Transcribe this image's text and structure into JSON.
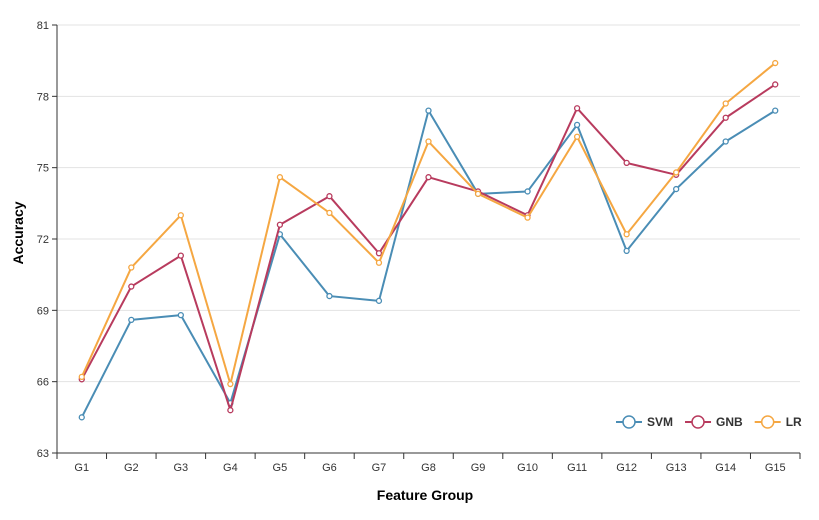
{
  "chart_data": {
    "type": "line",
    "xlabel": "Feature Group",
    "ylabel": "Accuracy",
    "categories": [
      "G1",
      "G2",
      "G3",
      "G4",
      "G5",
      "G6",
      "G7",
      "G8",
      "G9",
      "G10",
      "G11",
      "G12",
      "G13",
      "G14",
      "G15"
    ],
    "yticks": [
      "63",
      "66",
      "69",
      "72",
      "75",
      "78",
      "81"
    ],
    "ylim": [
      63,
      81
    ],
    "grid": "horizontal",
    "legend_position": "bottom-right",
    "series": [
      {
        "name": "SVM",
        "color": "#4a8db5",
        "values": [
          64.5,
          68.6,
          68.8,
          65.1,
          72.2,
          69.6,
          69.4,
          77.4,
          73.9,
          74.0,
          76.8,
          71.5,
          74.1,
          76.1,
          77.4
        ]
      },
      {
        "name": "GNB",
        "color": "#b83b5e",
        "values": [
          66.1,
          70.0,
          71.3,
          64.8,
          72.6,
          73.8,
          71.4,
          74.6,
          74.0,
          73.0,
          77.5,
          75.2,
          74.7,
          77.1,
          78.5
        ]
      },
      {
        "name": "LR",
        "color": "#f5a742",
        "values": [
          66.2,
          70.8,
          73.0,
          65.9,
          74.6,
          73.1,
          71.0,
          76.1,
          73.9,
          72.9,
          76.3,
          72.2,
          74.8,
          77.7,
          79.4
        ]
      }
    ]
  }
}
